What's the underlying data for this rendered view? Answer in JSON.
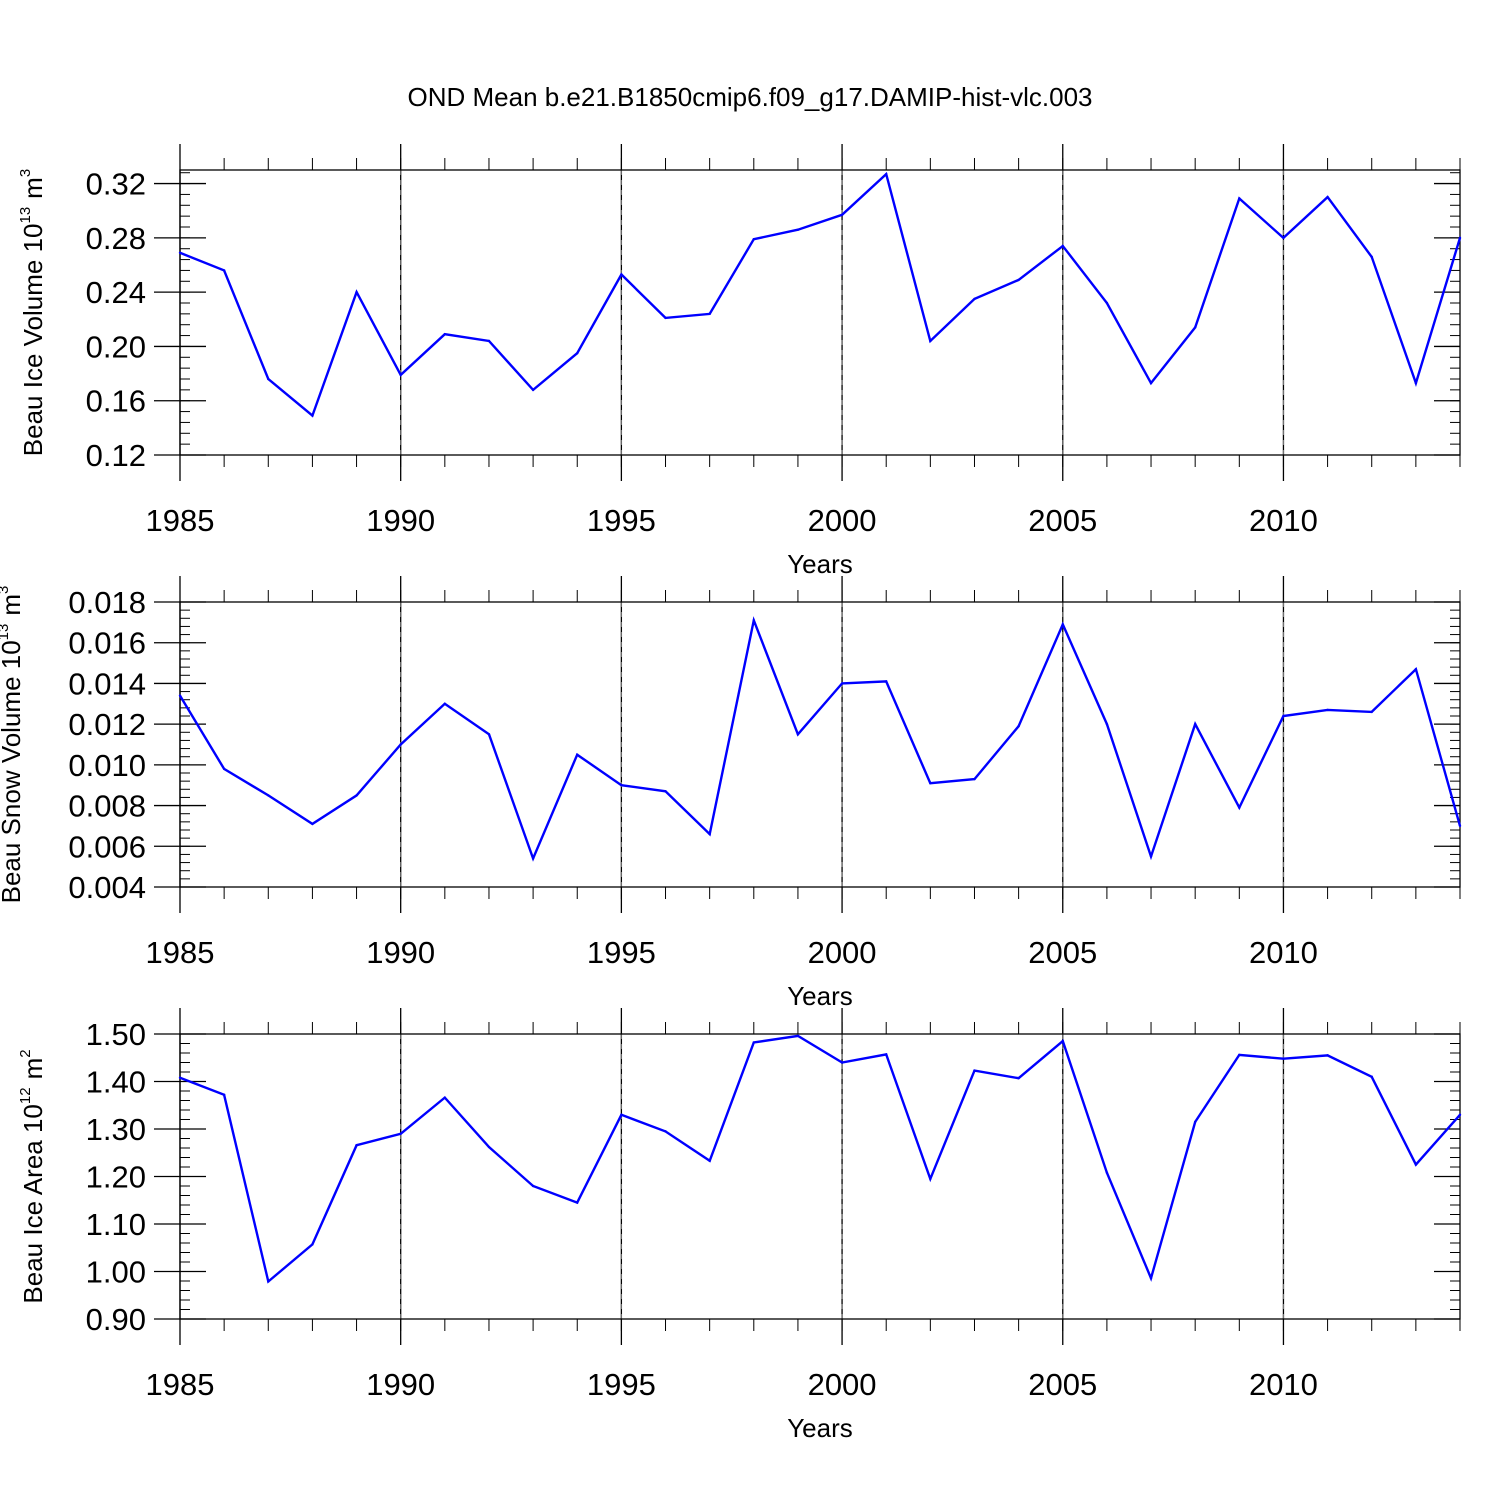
{
  "title": "OND Mean b.e21.B1850cmip6.f09_g17.DAMIP-hist-vlc.003",
  "line_color": "#0000ff",
  "chart_data": [
    {
      "type": "line",
      "ylabel": "Beau Ice Volume 10",
      "ylabel_exp": "13",
      "ylabel_unit": "m",
      "ylabel_unit_exp": "3",
      "xlabel": "Years",
      "xlim": [
        1985,
        2014
      ],
      "ylim": [
        0.12,
        0.33
      ],
      "x_ticks": [
        "1985",
        "1990",
        "1995",
        "2000",
        "2005",
        "2010"
      ],
      "y_ticks": [
        "0.12",
        "0.16",
        "0.20",
        "0.24",
        "0.28",
        "0.32"
      ],
      "x": [
        1985,
        1986,
        1987,
        1988,
        1989,
        1990,
        1991,
        1992,
        1993,
        1994,
        1995,
        1996,
        1997,
        1998,
        1999,
        2000,
        2001,
        2002,
        2003,
        2004,
        2005,
        2006,
        2007,
        2008,
        2009,
        2010,
        2011,
        2012,
        2013,
        2014
      ],
      "values": [
        0.269,
        0.256,
        0.176,
        0.149,
        0.24,
        0.179,
        0.209,
        0.204,
        0.168,
        0.195,
        0.253,
        0.221,
        0.224,
        0.279,
        0.286,
        0.297,
        0.327,
        0.204,
        0.235,
        0.249,
        0.274,
        0.232,
        0.173,
        0.214,
        0.309,
        0.28,
        0.31,
        0.266,
        0.173,
        0.28
      ]
    },
    {
      "type": "line",
      "ylabel": "Beau Snow Volume 10",
      "ylabel_exp": "13",
      "ylabel_unit": "m",
      "ylabel_unit_exp": "3",
      "xlabel": "Years",
      "xlim": [
        1985,
        2014
      ],
      "ylim": [
        0.004,
        0.018
      ],
      "x_ticks": [
        "1985",
        "1990",
        "1995",
        "2000",
        "2005",
        "2010"
      ],
      "y_ticks": [
        "0.004",
        "0.006",
        "0.008",
        "0.010",
        "0.012",
        "0.014",
        "0.016",
        "0.018"
      ],
      "x": [
        1985,
        1986,
        1987,
        1988,
        1989,
        1990,
        1991,
        1992,
        1993,
        1994,
        1995,
        1996,
        1997,
        1998,
        1999,
        2000,
        2001,
        2002,
        2003,
        2004,
        2005,
        2006,
        2007,
        2008,
        2009,
        2010,
        2011,
        2012,
        2013,
        2014
      ],
      "values": [
        0.0134,
        0.0098,
        0.0085,
        0.0071,
        0.0085,
        0.011,
        0.013,
        0.0115,
        0.0054,
        0.0105,
        0.009,
        0.0087,
        0.0066,
        0.0171,
        0.0115,
        0.014,
        0.0141,
        0.0091,
        0.0093,
        0.0119,
        0.0169,
        0.012,
        0.0055,
        0.012,
        0.0079,
        0.0124,
        0.0127,
        0.0126,
        0.0147,
        0.007
      ]
    },
    {
      "type": "line",
      "ylabel": "Beau Ice Area 10",
      "ylabel_exp": "12",
      "ylabel_unit": "m",
      "ylabel_unit_exp": "2",
      "xlabel": "Years",
      "xlim": [
        1985,
        2014
      ],
      "ylim": [
        0.9,
        1.5
      ],
      "x_ticks": [
        "1985",
        "1990",
        "1995",
        "2000",
        "2005",
        "2010"
      ],
      "y_ticks": [
        "0.90",
        "1.00",
        "1.10",
        "1.20",
        "1.30",
        "1.40",
        "1.50"
      ],
      "x": [
        1985,
        1986,
        1987,
        1988,
        1989,
        1990,
        1991,
        1992,
        1993,
        1994,
        1995,
        1996,
        1997,
        1998,
        1999,
        2000,
        2001,
        2002,
        2003,
        2004,
        2005,
        2006,
        2007,
        2008,
        2009,
        2010,
        2011,
        2012,
        2013,
        2014
      ],
      "values": [
        1.408,
        1.372,
        0.979,
        1.057,
        1.266,
        1.29,
        1.366,
        1.262,
        1.18,
        1.145,
        1.33,
        1.295,
        1.233,
        1.482,
        1.496,
        1.44,
        1.457,
        1.195,
        1.423,
        1.407,
        1.485,
        1.208,
        0.986,
        1.315,
        1.456,
        1.448,
        1.455,
        1.41,
        1.225,
        1.33
      ]
    }
  ]
}
